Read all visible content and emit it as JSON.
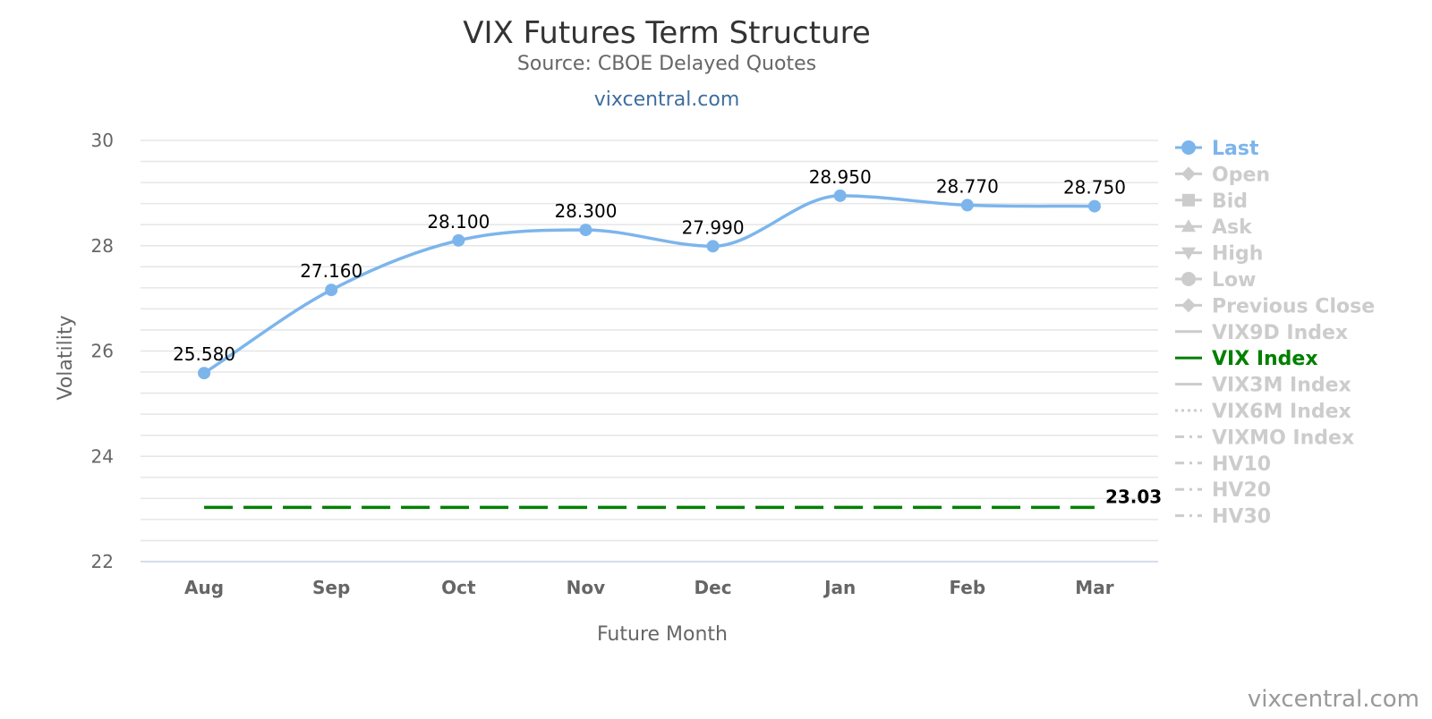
{
  "chart_data": {
    "type": "line",
    "title": "VIX Futures Term Structure",
    "subtitle": "Source: CBOE Delayed Quotes",
    "subtitle_link": "vixcentral.com",
    "credit": "vixcentral.com",
    "xlabel": "Future Month",
    "ylabel": "Volatility",
    "categories": [
      "Aug",
      "Sep",
      "Oct",
      "Nov",
      "Dec",
      "Jan",
      "Feb",
      "Mar"
    ],
    "ylim": [
      22,
      30
    ],
    "yticks": [
      22,
      24,
      26,
      28,
      30
    ],
    "grid": true,
    "legend_position": "right",
    "series": [
      {
        "name": "Last",
        "values": [
          25.58,
          27.16,
          28.1,
          28.3,
          27.99,
          28.95,
          28.77,
          28.75
        ],
        "labels": [
          "25.580",
          "27.160",
          "28.100",
          "28.300",
          "27.990",
          "28.950",
          "28.770",
          "28.750"
        ],
        "color": "#7cb5ec",
        "visible": true,
        "style": "smooth-line-with-markers"
      },
      {
        "name": "VIX Index",
        "values": [
          23.03,
          23.03,
          23.03,
          23.03,
          23.03,
          23.03,
          23.03,
          23.03
        ],
        "end_label": "23.03",
        "color": "#008000",
        "visible": true,
        "style": "dashed"
      }
    ],
    "legend": [
      {
        "name": "Last",
        "active": true,
        "symbol": "circle",
        "line": "solid",
        "color": "#7cb5ec"
      },
      {
        "name": "Open",
        "active": false,
        "symbol": "diamond",
        "line": "solid"
      },
      {
        "name": "Bid",
        "active": false,
        "symbol": "square",
        "line": "solid"
      },
      {
        "name": "Ask",
        "active": false,
        "symbol": "triangle",
        "line": "solid"
      },
      {
        "name": "High",
        "active": false,
        "symbol": "triangle-down",
        "line": "solid"
      },
      {
        "name": "Low",
        "active": false,
        "symbol": "circle",
        "line": "solid"
      },
      {
        "name": "Previous Close",
        "active": false,
        "symbol": "diamond",
        "line": "solid"
      },
      {
        "name": "VIX9D Index",
        "active": false,
        "symbol": "none",
        "line": "solid"
      },
      {
        "name": "VIX Index",
        "active": true,
        "symbol": "none",
        "line": "solid",
        "color": "#008000"
      },
      {
        "name": "VIX3M Index",
        "active": false,
        "symbol": "none",
        "line": "solid"
      },
      {
        "name": "VIX6M Index",
        "active": false,
        "symbol": "none",
        "line": "dotted"
      },
      {
        "name": "VIXMO Index",
        "active": false,
        "symbol": "none",
        "line": "dashdot"
      },
      {
        "name": "HV10",
        "active": false,
        "symbol": "none",
        "line": "dashdot"
      },
      {
        "name": "HV20",
        "active": false,
        "symbol": "none",
        "line": "dashdot"
      },
      {
        "name": "HV30",
        "active": false,
        "symbol": "none",
        "line": "dashdot"
      }
    ],
    "colors": {
      "inactive": "#cccccc",
      "gridline": "#e6e6e6",
      "axis_text": "#666666",
      "title": "#333333",
      "link": "#3e6d9f"
    }
  }
}
